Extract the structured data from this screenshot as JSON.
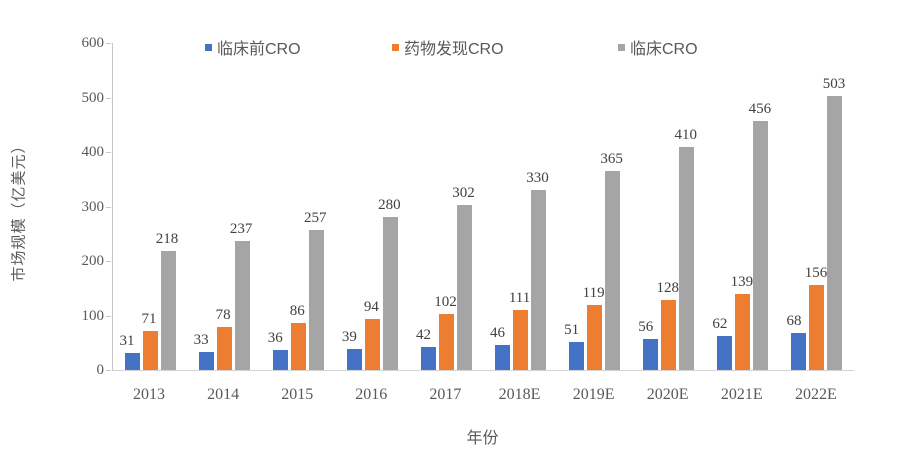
{
  "chart_data": {
    "type": "bar",
    "title": "",
    "xlabel": "年份",
    "ylabel": "市场规模（亿美元）",
    "categories": [
      "2013",
      "2014",
      "2015",
      "2016",
      "2017",
      "2018E",
      "2019E",
      "2020E",
      "2021E",
      "2022E"
    ],
    "series": [
      {
        "name": "临床前CRO",
        "color": "#4472C4",
        "values": [
          31,
          33,
          36,
          39,
          42,
          46,
          51,
          56,
          62,
          68
        ]
      },
      {
        "name": "药物发现CRO",
        "color": "#ED7D31",
        "values": [
          71,
          78,
          86,
          94,
          102,
          111,
          119,
          128,
          139,
          156
        ]
      },
      {
        "name": "临床CRO",
        "color": "#A5A5A5",
        "values": [
          218,
          237,
          257,
          280,
          302,
          330,
          365,
          410,
          456,
          503
        ]
      }
    ],
    "ylim": [
      0,
      600
    ],
    "yticks": [
      0,
      100,
      200,
      300,
      400,
      500,
      600
    ],
    "grid": false,
    "legend_position": "top",
    "data_labels": true,
    "colors": {
      "axis_line": "#c6c6c6",
      "tick_text": "#595959",
      "data_label_text": "#414141",
      "background": "#ffffff"
    }
  }
}
